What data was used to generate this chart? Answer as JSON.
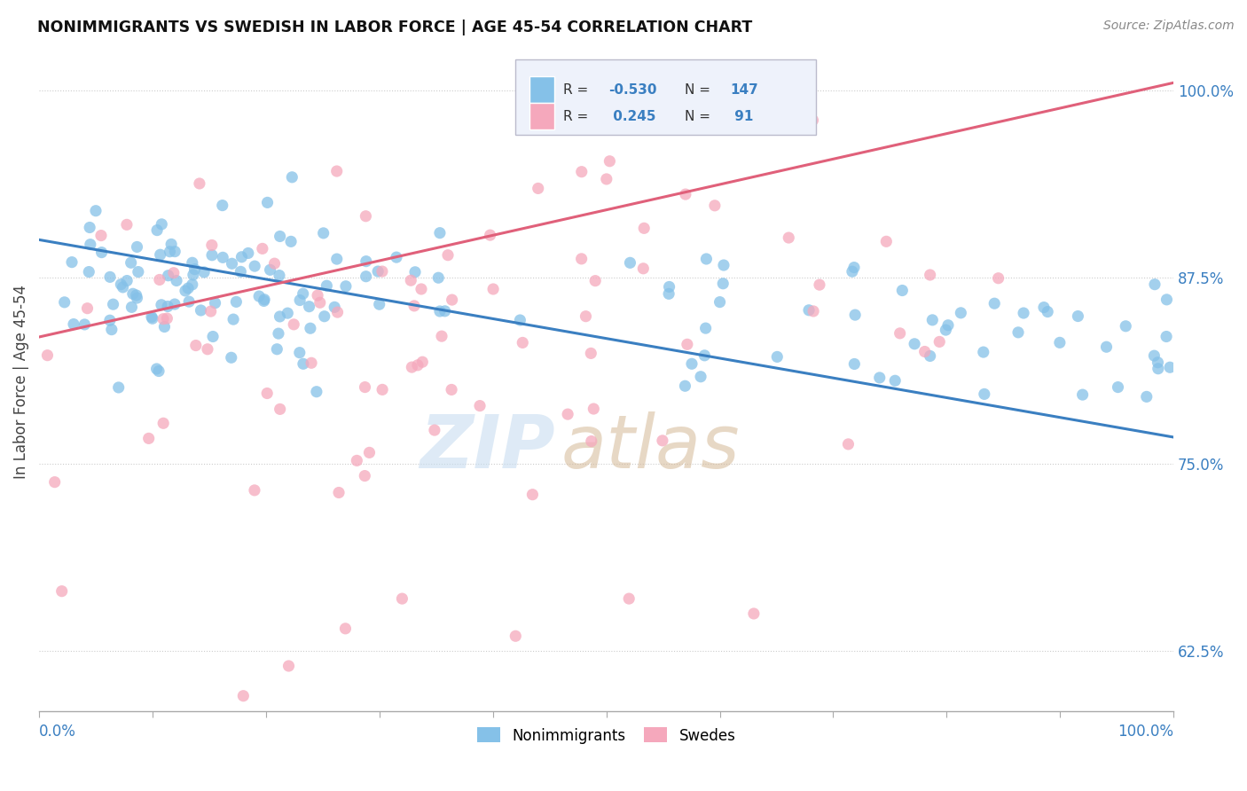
{
  "title": "NONIMMIGRANTS VS SWEDISH IN LABOR FORCE | AGE 45-54 CORRELATION CHART",
  "source": "Source: ZipAtlas.com",
  "ylabel": "In Labor Force | Age 45-54",
  "yticks": [
    0.625,
    0.75,
    0.875,
    1.0
  ],
  "series": [
    {
      "name": "Nonimmigrants",
      "R": -0.53,
      "N": 147,
      "color": "#85c1e8",
      "line_color": "#3a7fc1",
      "trend_start_x": 0.0,
      "trend_start_y": 0.9,
      "trend_end_x": 1.0,
      "trend_end_y": 0.768
    },
    {
      "name": "Swedes",
      "R": 0.245,
      "N": 91,
      "color": "#f5a8bc",
      "line_color": "#e0607a",
      "trend_start_x": 0.0,
      "trend_start_y": 0.835,
      "trend_end_x": 1.0,
      "trend_end_y": 1.005
    }
  ],
  "background_color": "#ffffff",
  "grid_color": "#cccccc",
  "xlim": [
    0.0,
    1.0
  ],
  "ylim": [
    0.585,
    1.025
  ]
}
